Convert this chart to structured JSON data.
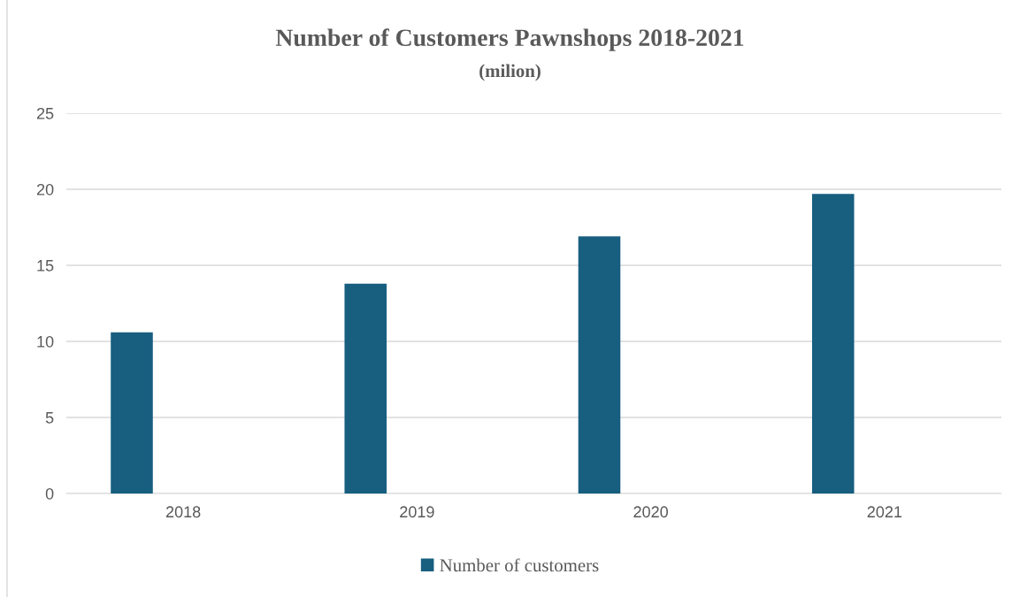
{
  "chart_data": {
    "type": "bar",
    "title": "Number of Customers Pawnshops 2018-2021",
    "subtitle": "(milion)",
    "categories": [
      "2018",
      "2019",
      "2020",
      "2021"
    ],
    "series": [
      {
        "name": "Number of customers",
        "color": "#175e7f",
        "values": [
          10.6,
          13.8,
          16.9,
          19.7
        ]
      }
    ],
    "ylim": [
      0,
      25
    ],
    "yticks": [
      0,
      5,
      10,
      15,
      20,
      25
    ],
    "grid": "y",
    "legend": "bottom"
  }
}
